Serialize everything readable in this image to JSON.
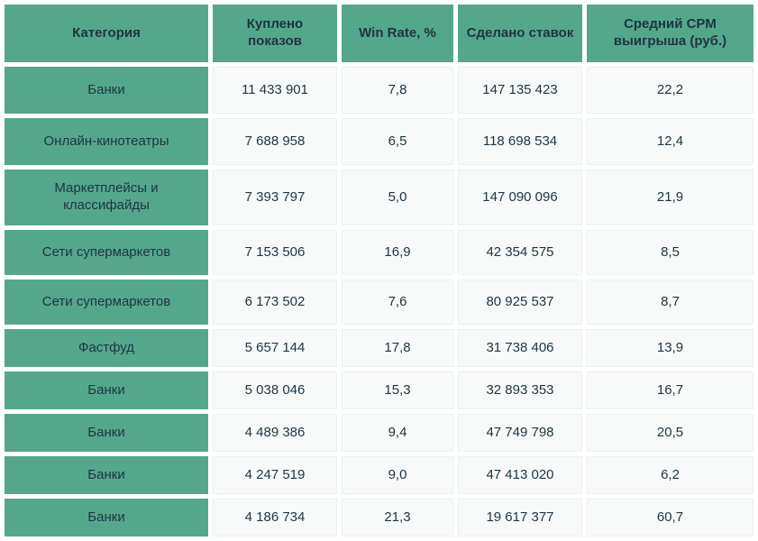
{
  "colors": {
    "green": "#55a78c",
    "cell_bg": "#f7faf9",
    "cell_border": "#e9f2ee",
    "text": "#1e3440"
  },
  "chart_data": {
    "type": "table",
    "title": "",
    "columns": [
      "Категория",
      "Куплено показов",
      "Win Rate, %",
      "Сделано ставок",
      "Средний CPM выигрыша (руб.)"
    ],
    "rows": [
      [
        "Банки",
        "11 433 901",
        "7,8",
        "147 135 423",
        "22,2"
      ],
      [
        "Онлайн-кинотеатры",
        "7 688 958",
        "6,5",
        "118 698 534",
        "12,4"
      ],
      [
        "Маркетплейсы и классифайды",
        "7 393 797",
        "5,0",
        "147 090 096",
        "21,9"
      ],
      [
        "Сети супермаркетов",
        "7 153 506",
        "16,9",
        "42 354 575",
        "8,5"
      ],
      [
        "Сети супермаркетов",
        "6 173 502",
        "7,6",
        "80 925 537",
        "8,7"
      ],
      [
        "Фастфуд",
        "5 657 144",
        "17,8",
        "31 738 406",
        "13,9"
      ],
      [
        "Банки",
        "5 038 046",
        "15,3",
        "32 893 353",
        "16,7"
      ],
      [
        "Банки",
        "4 489 386",
        "9,4",
        "47 749 798",
        "20,5"
      ],
      [
        "Банки",
        "4 247 519",
        "9,0",
        "47 413 020",
        "6,2"
      ],
      [
        "Банки",
        "4 186 734",
        "21,3",
        "19 617 377",
        "60,7"
      ]
    ]
  }
}
